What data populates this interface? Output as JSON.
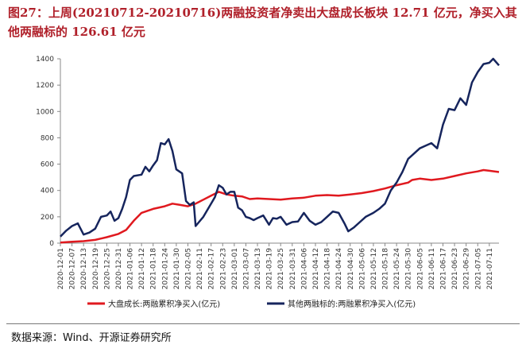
{
  "page": {
    "title": "图27：上周(20210712-20210716)两融投资者净卖出大盘成长板块 12.71 亿元，净买入其他两融标的 126.61 亿元",
    "source": "数据来源：Wind、开源证券研究所"
  },
  "chart_data": {
    "type": "line",
    "title": "",
    "xlabel": "",
    "ylabel": "",
    "ylim": [
      0,
      1400
    ],
    "yticks": [
      0,
      200,
      400,
      600,
      800,
      1000,
      1200,
      1400
    ],
    "grid": false,
    "legend_position": "bottom",
    "categories": [
      "2020-12-01",
      "2020-12-07",
      "2020-12-13",
      "2020-12-19",
      "2020-12-25",
      "2020-12-31",
      "2021-01-06",
      "2021-01-12",
      "2021-01-18",
      "2021-01-24",
      "2021-01-30",
      "2021-02-05",
      "2021-02-11",
      "2021-02-17",
      "2021-02-23",
      "2021-03-01",
      "2021-03-07",
      "2021-03-13",
      "2021-03-19",
      "2021-03-25",
      "2021-03-31",
      "2021-04-06",
      "2021-04-12",
      "2021-04-18",
      "2021-04-24",
      "2021-04-30",
      "2021-05-06",
      "2021-05-12",
      "2021-05-18",
      "2021-05-24",
      "2021-05-30",
      "2021-06-05",
      "2021-06-11",
      "2021-06-17",
      "2021-06-23",
      "2021-06-29",
      "2021-07-05",
      "2021-07-11"
    ],
    "x_start": "2020-12-01",
    "x_end": "2021-07-16",
    "series": [
      {
        "name": "大盘成长:两融累积净买入(亿元)",
        "color": "#e0191f",
        "points": [
          [
            "2020-12-01",
            5
          ],
          [
            "2020-12-07",
            10
          ],
          [
            "2020-12-13",
            15
          ],
          [
            "2020-12-19",
            25
          ],
          [
            "2020-12-25",
            45
          ],
          [
            "2020-12-31",
            70
          ],
          [
            "2021-01-04",
            100
          ],
          [
            "2021-01-08",
            170
          ],
          [
            "2021-01-12",
            230
          ],
          [
            "2021-01-18",
            260
          ],
          [
            "2021-01-24",
            280
          ],
          [
            "2021-01-28",
            300
          ],
          [
            "2021-02-01",
            290
          ],
          [
            "2021-02-05",
            280
          ],
          [
            "2021-02-09",
            300
          ],
          [
            "2021-02-13",
            330
          ],
          [
            "2021-02-17",
            360
          ],
          [
            "2021-02-21",
            390
          ],
          [
            "2021-02-25",
            370
          ],
          [
            "2021-03-01",
            360
          ],
          [
            "2021-03-05",
            355
          ],
          [
            "2021-03-09",
            335
          ],
          [
            "2021-03-13",
            340
          ],
          [
            "2021-03-19",
            335
          ],
          [
            "2021-03-25",
            330
          ],
          [
            "2021-03-31",
            340
          ],
          [
            "2021-04-06",
            345
          ],
          [
            "2021-04-12",
            360
          ],
          [
            "2021-04-18",
            365
          ],
          [
            "2021-04-24",
            360
          ],
          [
            "2021-04-30",
            370
          ],
          [
            "2021-05-06",
            380
          ],
          [
            "2021-05-12",
            395
          ],
          [
            "2021-05-18",
            415
          ],
          [
            "2021-05-24",
            440
          ],
          [
            "2021-05-30",
            460
          ],
          [
            "2021-06-01",
            480
          ],
          [
            "2021-06-05",
            490
          ],
          [
            "2021-06-11",
            480
          ],
          [
            "2021-06-17",
            490
          ],
          [
            "2021-06-23",
            510
          ],
          [
            "2021-06-29",
            530
          ],
          [
            "2021-07-05",
            545
          ],
          [
            "2021-07-08",
            555
          ],
          [
            "2021-07-11",
            550
          ],
          [
            "2021-07-16",
            540
          ]
        ]
      },
      {
        "name": "其他两融标的:两融累积净买入(亿元)",
        "color": "#16255d",
        "points": [
          [
            "2020-12-01",
            50
          ],
          [
            "2020-12-04",
            95
          ],
          [
            "2020-12-07",
            130
          ],
          [
            "2020-12-10",
            150
          ],
          [
            "2020-12-13",
            65
          ],
          [
            "2020-12-16",
            80
          ],
          [
            "2020-12-19",
            110
          ],
          [
            "2020-12-22",
            200
          ],
          [
            "2020-12-25",
            210
          ],
          [
            "2020-12-27",
            240
          ],
          [
            "2020-12-29",
            170
          ],
          [
            "2020-12-31",
            190
          ],
          [
            "2021-01-02",
            260
          ],
          [
            "2021-01-04",
            350
          ],
          [
            "2021-01-06",
            480
          ],
          [
            "2021-01-08",
            510
          ],
          [
            "2021-01-12",
            520
          ],
          [
            "2021-01-14",
            580
          ],
          [
            "2021-01-16",
            545
          ],
          [
            "2021-01-18",
            590
          ],
          [
            "2021-01-20",
            630
          ],
          [
            "2021-01-22",
            760
          ],
          [
            "2021-01-24",
            750
          ],
          [
            "2021-01-26",
            790
          ],
          [
            "2021-01-28",
            700
          ],
          [
            "2021-01-30",
            560
          ],
          [
            "2021-02-02",
            530
          ],
          [
            "2021-02-04",
            320
          ],
          [
            "2021-02-06",
            290
          ],
          [
            "2021-02-08",
            310
          ],
          [
            "2021-02-09",
            130
          ],
          [
            "2021-02-13",
            200
          ],
          [
            "2021-02-17",
            300
          ],
          [
            "2021-02-19",
            350
          ],
          [
            "2021-02-21",
            440
          ],
          [
            "2021-02-23",
            420
          ],
          [
            "2021-02-25",
            370
          ],
          [
            "2021-02-27",
            390
          ],
          [
            "2021-03-01",
            390
          ],
          [
            "2021-03-03",
            270
          ],
          [
            "2021-03-05",
            250
          ],
          [
            "2021-03-07",
            200
          ],
          [
            "2021-03-09",
            190
          ],
          [
            "2021-03-11",
            175
          ],
          [
            "2021-03-13",
            190
          ],
          [
            "2021-03-16",
            210
          ],
          [
            "2021-03-19",
            140
          ],
          [
            "2021-03-21",
            190
          ],
          [
            "2021-03-23",
            185
          ],
          [
            "2021-03-25",
            200
          ],
          [
            "2021-03-28",
            140
          ],
          [
            "2021-03-31",
            160
          ],
          [
            "2021-04-03",
            165
          ],
          [
            "2021-04-06",
            230
          ],
          [
            "2021-04-09",
            170
          ],
          [
            "2021-04-12",
            140
          ],
          [
            "2021-04-15",
            160
          ],
          [
            "2021-04-18",
            200
          ],
          [
            "2021-04-21",
            240
          ],
          [
            "2021-04-24",
            230
          ],
          [
            "2021-04-27",
            150
          ],
          [
            "2021-04-29",
            90
          ],
          [
            "2021-05-02",
            120
          ],
          [
            "2021-05-05",
            160
          ],
          [
            "2021-05-08",
            200
          ],
          [
            "2021-05-12",
            230
          ],
          [
            "2021-05-15",
            260
          ],
          [
            "2021-05-18",
            300
          ],
          [
            "2021-05-21",
            400
          ],
          [
            "2021-05-24",
            460
          ],
          [
            "2021-05-27",
            540
          ],
          [
            "2021-05-30",
            640
          ],
          [
            "2021-06-02",
            680
          ],
          [
            "2021-06-05",
            720
          ],
          [
            "2021-06-08",
            740
          ],
          [
            "2021-06-11",
            760
          ],
          [
            "2021-06-14",
            720
          ],
          [
            "2021-06-17",
            900
          ],
          [
            "2021-06-20",
            1020
          ],
          [
            "2021-06-23",
            1010
          ],
          [
            "2021-06-26",
            1100
          ],
          [
            "2021-06-29",
            1050
          ],
          [
            "2021-07-02",
            1220
          ],
          [
            "2021-07-05",
            1300
          ],
          [
            "2021-07-08",
            1360
          ],
          [
            "2021-07-11",
            1370
          ],
          [
            "2021-07-13",
            1400
          ],
          [
            "2021-07-16",
            1350
          ]
        ]
      }
    ]
  }
}
